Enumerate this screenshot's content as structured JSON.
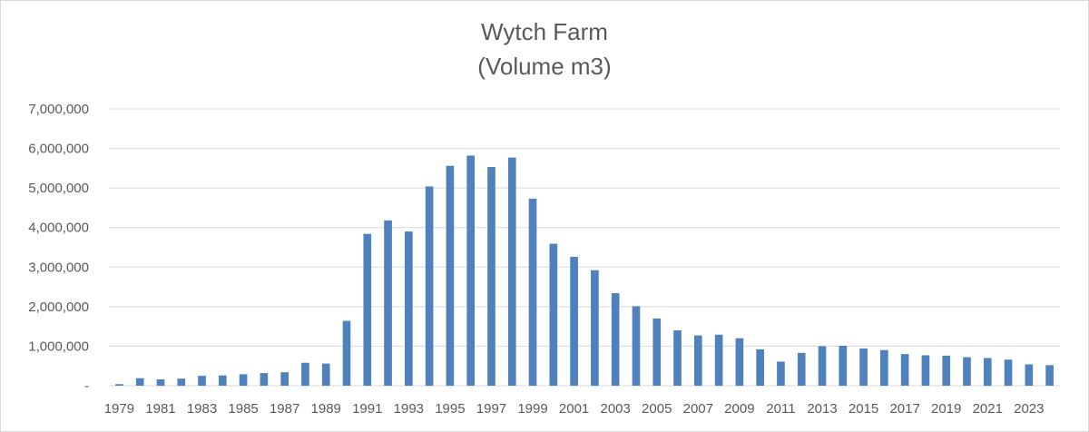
{
  "chart_data": {
    "type": "bar",
    "title": "Wytch Farm",
    "subtitle": "(Volume m3)",
    "ylim": [
      0,
      7000000
    ],
    "yticks": [
      0,
      1000000,
      2000000,
      3000000,
      4000000,
      5000000,
      6000000,
      7000000
    ],
    "ytick_labels": [
      "-",
      "1,000,000",
      "2,000,000",
      "3,000,000",
      "4,000,000",
      "5,000,000",
      "6,000,000",
      "7,000,000"
    ],
    "grid": true,
    "bar_color": "#4f81bd",
    "categories": [
      "1979",
      "1980",
      "1981",
      "1982",
      "1983",
      "1984",
      "1985",
      "1986",
      "1987",
      "1988",
      "1989",
      "1990",
      "1991",
      "1992",
      "1993",
      "1994",
      "1995",
      "1996",
      "1997",
      "1998",
      "1999",
      "2000",
      "2001",
      "2002",
      "2003",
      "2004",
      "2005",
      "2006",
      "2007",
      "2008",
      "2009",
      "2010",
      "2011",
      "2012",
      "2013",
      "2014",
      "2015",
      "2016",
      "2017",
      "2018",
      "2019",
      "2020",
      "2021",
      "2022",
      "2023",
      "2024"
    ],
    "xtick_labels": [
      "1979",
      "1981",
      "1983",
      "1985",
      "1987",
      "1989",
      "1991",
      "1993",
      "1995",
      "1997",
      "1999",
      "2001",
      "2003",
      "2005",
      "2007",
      "2009",
      "2011",
      "2013",
      "2015",
      "2017",
      "2019",
      "2021",
      "2023"
    ],
    "values": [
      40000,
      190000,
      160000,
      180000,
      250000,
      260000,
      290000,
      320000,
      340000,
      580000,
      560000,
      1640000,
      3840000,
      4180000,
      3900000,
      5040000,
      5560000,
      5820000,
      5530000,
      5770000,
      4730000,
      3590000,
      3260000,
      2920000,
      2340000,
      2010000,
      1700000,
      1400000,
      1270000,
      1290000,
      1200000,
      920000,
      610000,
      830000,
      1000000,
      1010000,
      940000,
      900000,
      800000,
      770000,
      760000,
      720000,
      700000,
      660000,
      540000,
      520000
    ]
  }
}
